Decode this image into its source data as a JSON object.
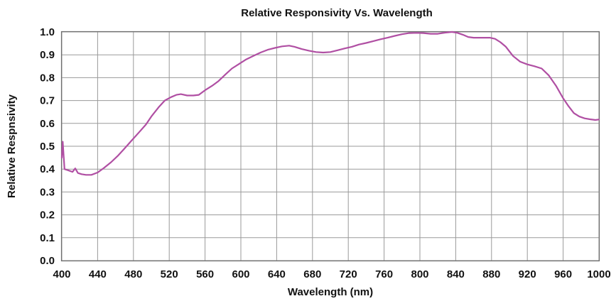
{
  "chart_data": {
    "type": "line",
    "title": "Relative Responsivity Vs. Wavelength",
    "xlabel": "Wavelength (nm)",
    "ylabel": "Relative Respnsivity",
    "xlim": [
      400,
      1000
    ],
    "ylim": [
      0,
      1
    ],
    "x_ticks": [
      "400",
      "440",
      "480",
      "520",
      "560",
      "600",
      "640",
      "680",
      "720",
      "760",
      "800",
      "840",
      "880",
      "920",
      "960",
      "1000"
    ],
    "y_ticks": [
      "0.0",
      "0.1",
      "0.2",
      "0.3",
      "0.4",
      "0.5",
      "0.6",
      "0.7",
      "0.8",
      "0.9",
      "1.0"
    ],
    "grid": true,
    "series_color": "#b04fa3",
    "series": [
      {
        "x": [
          400,
          401,
          403,
          407,
          412,
          415,
          418,
          422,
          427,
          433,
          440,
          447,
          455,
          463,
          470,
          478,
          486,
          494,
          500,
          508,
          515,
          522,
          528,
          533,
          540,
          547,
          553,
          560,
          568,
          575,
          583,
          590,
          598,
          606,
          614,
          622,
          630,
          638,
          646,
          654,
          660,
          668,
          676,
          684,
          692,
          700,
          708,
          716,
          724,
          732,
          740,
          748,
          756,
          764,
          772,
          780,
          788,
          796,
          804,
          812,
          820,
          828,
          836,
          842,
          848,
          854,
          860,
          866,
          872,
          878,
          884,
          890,
          896,
          904,
          912,
          920,
          928,
          936,
          944,
          952,
          960,
          966,
          972,
          978,
          984,
          990,
          996,
          1000
        ],
        "y": [
          0.45,
          0.52,
          0.4,
          0.395,
          0.388,
          0.403,
          0.383,
          0.378,
          0.375,
          0.375,
          0.385,
          0.405,
          0.43,
          0.46,
          0.49,
          0.525,
          0.56,
          0.595,
          0.63,
          0.67,
          0.7,
          0.715,
          0.725,
          0.728,
          0.722,
          0.722,
          0.725,
          0.745,
          0.765,
          0.785,
          0.815,
          0.84,
          0.86,
          0.88,
          0.895,
          0.91,
          0.922,
          0.93,
          0.937,
          0.94,
          0.935,
          0.925,
          0.918,
          0.912,
          0.91,
          0.912,
          0.92,
          0.928,
          0.935,
          0.945,
          0.952,
          0.96,
          0.968,
          0.975,
          0.983,
          0.99,
          0.995,
          0.996,
          0.995,
          0.992,
          0.992,
          0.997,
          1.0,
          0.996,
          0.988,
          0.978,
          0.975,
          0.975,
          0.975,
          0.975,
          0.97,
          0.955,
          0.935,
          0.895,
          0.87,
          0.858,
          0.85,
          0.84,
          0.81,
          0.765,
          0.71,
          0.675,
          0.645,
          0.63,
          0.622,
          0.618,
          0.615,
          0.617
        ]
      }
    ]
  }
}
